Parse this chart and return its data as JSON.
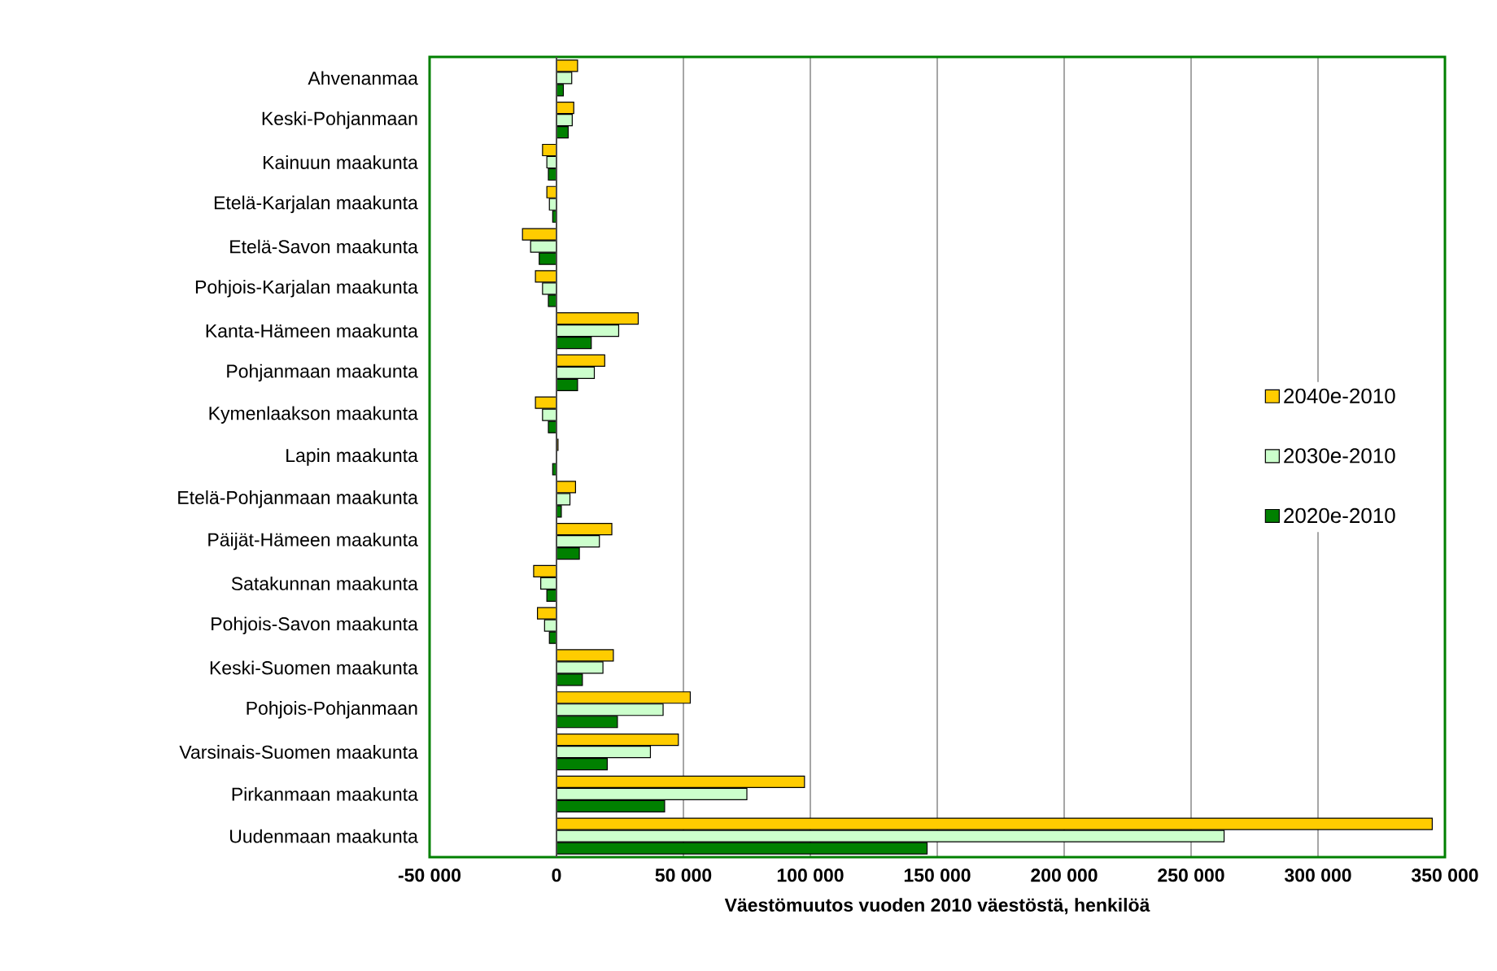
{
  "chart_data": {
    "type": "bar",
    "orientation": "horizontal",
    "xlabel": "Väestömuutos vuoden 2010 väestöstä, henkilöä",
    "categories": [
      "Ahvenanmaa",
      "Keski-Pohjanmaan",
      "Kainuun maakunta",
      "Etelä-Karjalan maakunta",
      "Etelä-Savon maakunta",
      "Pohjois-Karjalan maakunta",
      "Kanta-Hämeen maakunta",
      "Pohjanmaan maakunta",
      "Kymenlaakson maakunta",
      "Lapin maakunta",
      "Etelä-Pohjanmaan maakunta",
      "Päijät-Hämeen maakunta",
      "Satakunnan maakunta",
      "Pohjois-Savon maakunta",
      "Keski-Suomen maakunta",
      "Pohjois-Pohjanmaan",
      "Varsinais-Suomen maakunta",
      "Pirkanmaan maakunta",
      "Uudenmaan maakunta"
    ],
    "series": [
      {
        "name": "2040e-2010",
        "color": "#ffcc00",
        "values": [
          8300,
          6800,
          -5500,
          -3800,
          -13400,
          -8300,
          32200,
          19000,
          -8300,
          600,
          7500,
          21800,
          -9000,
          -7500,
          22400,
          52700,
          48000,
          97700,
          345000
        ]
      },
      {
        "name": "2030e-2010",
        "color": "#ccffcc",
        "values": [
          6000,
          6200,
          -3800,
          -2800,
          -10200,
          -5500,
          24500,
          14900,
          -5500,
          null,
          5300,
          16900,
          -6200,
          -4700,
          18300,
          42000,
          37000,
          75000,
          263000
        ]
      },
      {
        "name": "2020e-2010",
        "color": "#008000",
        "values": [
          2700,
          4600,
          -3200,
          -1500,
          -6800,
          -3200,
          13700,
          8300,
          -3200,
          -1500,
          1900,
          9000,
          -3800,
          -2800,
          10200,
          24000,
          20000,
          42600,
          146000
        ]
      }
    ],
    "xlim": [
      -50000,
      350000
    ],
    "xticks": [
      {
        "value": -50000,
        "label": "-50 000"
      },
      {
        "value": 0,
        "label": "0"
      },
      {
        "value": 50000,
        "label": "50 000"
      },
      {
        "value": 100000,
        "label": "100 000"
      },
      {
        "value": 150000,
        "label": "150 000"
      },
      {
        "value": 200000,
        "label": "200 000"
      },
      {
        "value": 250000,
        "label": "250 000"
      },
      {
        "value": 300000,
        "label": "300 000"
      },
      {
        "value": 350000,
        "label": "350 000"
      }
    ],
    "grid": "x",
    "legend": "right"
  }
}
